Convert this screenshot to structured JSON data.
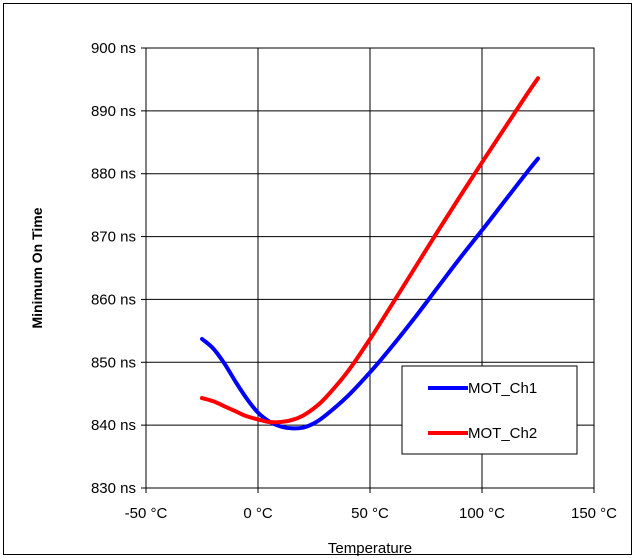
{
  "chart_data": {
    "type": "line",
    "xlabel": "Temperature",
    "ylabel": "Minimum On Time",
    "xlim": [
      -50,
      150
    ],
    "ylim": [
      830,
      900
    ],
    "x_ticks": [
      -50,
      0,
      50,
      100,
      150
    ],
    "x_tick_labels": [
      "-50 °C",
      "0 °C",
      "50 °C",
      "100 °C",
      "150 °C"
    ],
    "y_ticks": [
      830,
      840,
      850,
      860,
      870,
      880,
      890,
      900
    ],
    "y_tick_labels": [
      "830 ns",
      "840 ns",
      "850 ns",
      "860 ns",
      "870 ns",
      "880 ns",
      "890 ns",
      "900 ns"
    ],
    "grid": true,
    "legend_position": "bottom-right",
    "series": [
      {
        "name": "MOT_Ch1",
        "color": "#0000ff",
        "x": [
          -25,
          -20,
          -15,
          -10,
          -5,
          0,
          5,
          10,
          15,
          20,
          25,
          30,
          40,
          50,
          60,
          70,
          80,
          90,
          100,
          110,
          120,
          125
        ],
        "y": [
          853.7,
          852.2,
          849.8,
          846.9,
          844.2,
          842.0,
          840.6,
          839.8,
          839.5,
          839.6,
          840.3,
          841.5,
          844.6,
          848.4,
          852.6,
          857.1,
          861.8,
          866.5,
          871.0,
          875.6,
          880.2,
          882.4
        ]
      },
      {
        "name": "MOT_Ch2",
        "color": "#ff0000",
        "x": [
          -25,
          -20,
          -15,
          -10,
          -5,
          0,
          5,
          10,
          15,
          20,
          25,
          30,
          40,
          50,
          60,
          70,
          80,
          90,
          100,
          110,
          120,
          125
        ],
        "y": [
          844.3,
          843.8,
          843.0,
          842.2,
          841.4,
          840.9,
          840.5,
          840.5,
          840.8,
          841.5,
          842.7,
          844.3,
          848.5,
          853.7,
          859.3,
          865.0,
          870.7,
          876.3,
          881.8,
          887.2,
          892.6,
          895.2
        ]
      }
    ]
  }
}
